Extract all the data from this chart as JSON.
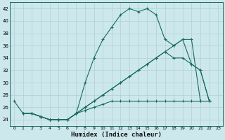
{
  "xlabel": "Humidex (Indice chaleur)",
  "bg_color": "#cce8ec",
  "grid_color": "#b0cfd4",
  "line_color": "#1a6b60",
  "xlim": [
    -0.5,
    23.5
  ],
  "ylim": [
    23,
    43
  ],
  "yticks": [
    24,
    26,
    28,
    30,
    32,
    34,
    36,
    38,
    40,
    42
  ],
  "xticks": [
    0,
    1,
    2,
    3,
    4,
    5,
    6,
    7,
    8,
    9,
    10,
    11,
    12,
    13,
    14,
    15,
    16,
    17,
    18,
    19,
    20,
    21,
    22,
    23
  ],
  "series1_x": [
    0,
    1,
    2,
    3,
    4,
    5,
    6,
    7,
    8,
    9,
    10,
    11,
    12,
    13,
    14,
    15,
    16,
    17,
    18,
    19,
    20,
    21
  ],
  "series1_y": [
    27,
    25,
    25,
    24.5,
    24,
    24,
    24,
    25,
    30,
    34,
    37,
    39,
    41,
    42,
    41.5,
    42,
    41,
    37,
    36,
    37,
    37,
    27
  ],
  "series2_x": [
    1,
    2,
    3,
    4,
    5,
    6,
    7,
    8,
    9,
    10,
    11,
    12,
    13,
    14,
    15,
    16,
    17,
    18,
    19,
    20,
    21,
    22
  ],
  "series2_y": [
    25,
    25,
    24.5,
    24,
    24,
    24,
    25,
    26,
    27,
    28,
    29,
    30,
    31,
    32,
    33,
    34,
    35,
    36,
    37,
    33,
    32,
    27
  ],
  "series3_x": [
    2,
    3,
    4,
    5,
    6,
    7,
    8,
    9,
    10,
    11,
    12,
    13,
    14,
    15,
    16,
    17,
    18,
    19,
    20,
    21,
    22
  ],
  "series3_y": [
    25,
    24.5,
    24,
    24,
    24,
    25,
    26,
    27,
    28,
    29,
    30,
    31,
    32,
    33,
    34,
    35,
    34,
    34,
    33,
    32,
    27
  ],
  "series4_x": [
    1,
    2,
    3,
    4,
    5,
    6,
    7,
    8,
    9,
    10,
    11,
    12,
    13,
    14,
    15,
    16,
    17,
    18,
    19,
    20,
    21,
    22
  ],
  "series4_y": [
    25,
    25,
    24.5,
    24,
    24,
    24,
    25,
    25.5,
    26,
    26.5,
    27,
    27,
    27,
    27,
    27,
    27,
    27,
    27,
    27,
    27,
    27,
    27
  ]
}
